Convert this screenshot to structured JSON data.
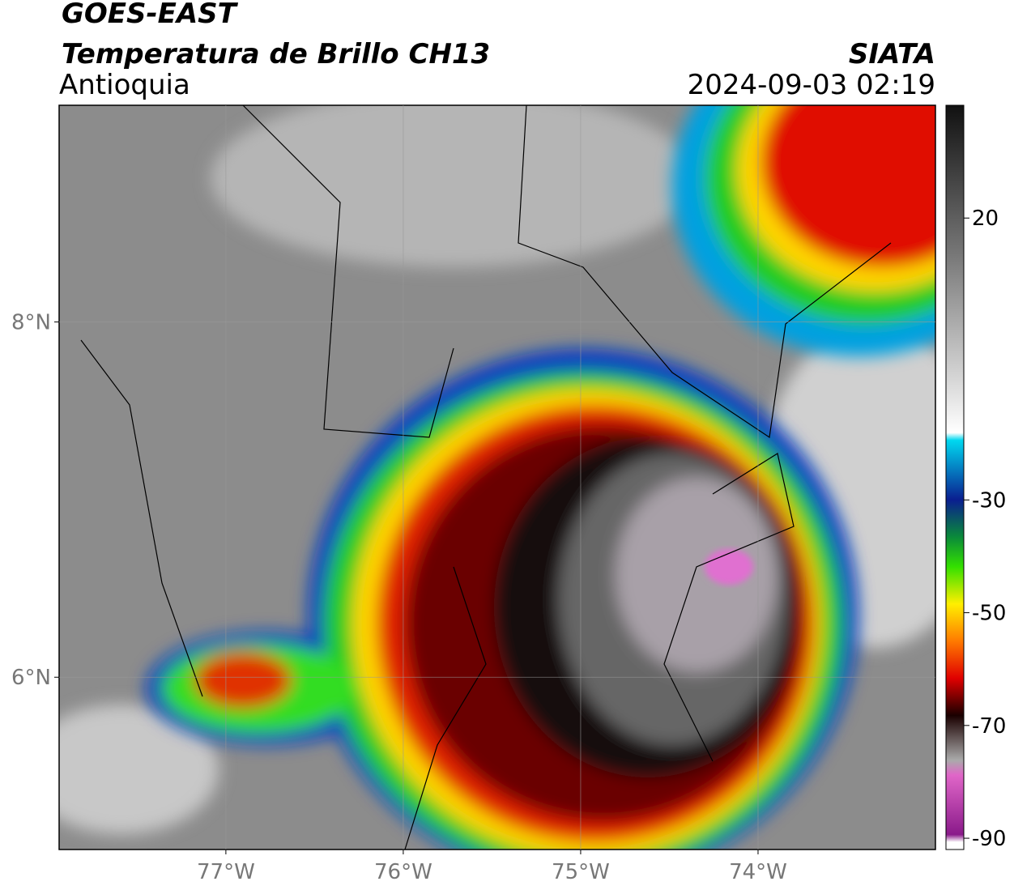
{
  "header": {
    "title": "GOES-EAST",
    "subtitle": "Temperatura de Brillo CH13",
    "region": "Antioquia",
    "source": "SIATA",
    "timestamp": "2024-09-03 02:19"
  },
  "map": {
    "xlim": [
      -77.94,
      -73.0
    ],
    "ylim": [
      5.03,
      9.22
    ],
    "xticks": [
      {
        "value": -77,
        "label": "77°W"
      },
      {
        "value": -76,
        "label": "76°W"
      },
      {
        "value": -75,
        "label": "75°W"
      },
      {
        "value": -74,
        "label": "74°W"
      }
    ],
    "yticks": [
      {
        "value": 6,
        "label": "6°N"
      },
      {
        "value": 8,
        "label": "8°N"
      }
    ],
    "grid": true
  },
  "colorbar": {
    "lim": [
      -92,
      40
    ],
    "ticks": [
      20,
      -30,
      -50,
      -70,
      -90
    ]
  }
}
